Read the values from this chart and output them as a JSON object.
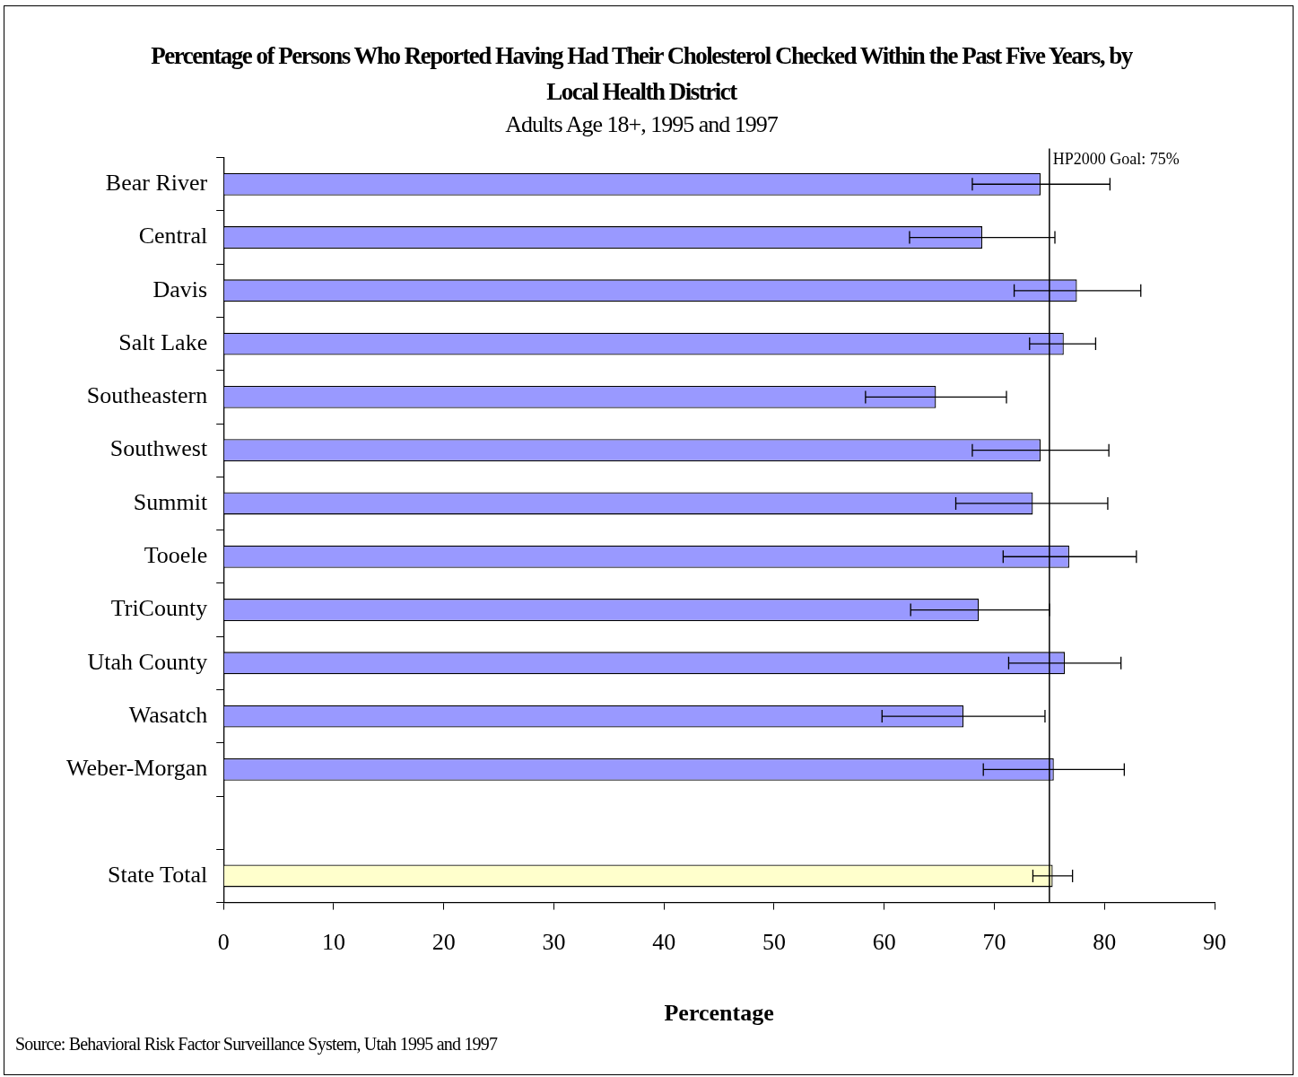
{
  "chart_data": {
    "type": "bar",
    "orientation": "horizontal",
    "title": "Percentage of Persons Who Reported  Having Had Their Cholesterol Checked Within the Past Five Years, by Local Health District",
    "subtitle": "Adults Age 18+, 1995 and 1997",
    "xlabel": "Percentage",
    "categories": [
      "Bear River",
      "Central",
      "Davis",
      "Salt Lake",
      "Southeastern",
      "Southwest",
      "Summit",
      "Tooele",
      "TriCounty",
      "Utah County",
      "Wasatch",
      "Weber-Morgan",
      null,
      "State Total"
    ],
    "values": [
      74.2,
      68.9,
      77.5,
      76.3,
      64.7,
      74.2,
      73.5,
      76.8,
      68.6,
      76.4,
      67.2,
      75.4,
      null,
      75.3
    ],
    "errors": [
      [
        68.0,
        80.5
      ],
      [
        62.3,
        75.5
      ],
      [
        71.8,
        83.3
      ],
      [
        73.2,
        79.2
      ],
      [
        58.3,
        71.1
      ],
      [
        68.0,
        80.4
      ],
      [
        66.5,
        80.3
      ],
      [
        70.8,
        82.9
      ],
      [
        62.4,
        75.0
      ],
      [
        71.3,
        81.5
      ],
      [
        59.8,
        74.6
      ],
      [
        69.0,
        81.8
      ],
      null,
      [
        73.5,
        77.1
      ]
    ],
    "colors": [
      "#9999ff",
      "#9999ff",
      "#9999ff",
      "#9999ff",
      "#9999ff",
      "#9999ff",
      "#9999ff",
      "#9999ff",
      "#9999ff",
      "#9999ff",
      "#9999ff",
      "#9999ff",
      "#9999ff",
      "#ffffcc"
    ],
    "xlim": [
      0,
      90
    ],
    "xticks": [
      0,
      10,
      20,
      30,
      40,
      50,
      60,
      70,
      80,
      90
    ],
    "grid": false,
    "legend": false,
    "ref_lines": [
      {
        "axis": "x",
        "value": 75,
        "label": "HP2000 Goal: 75%"
      }
    ],
    "annotations": [
      "Source: Behavioral Risk Factor Surveillance System, Utah 1995 and 1997"
    ]
  }
}
